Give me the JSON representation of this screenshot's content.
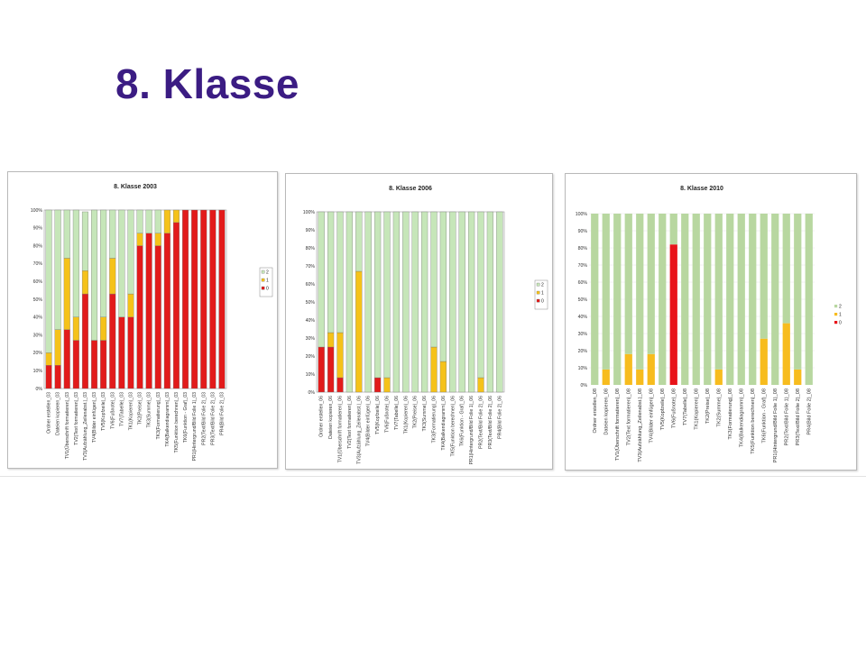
{
  "slide": {
    "title": "8. Klasse"
  },
  "colors": {
    "c2": "#c6e6b9",
    "c1": "#f5c21a",
    "c0": "#e21b1b",
    "c2_2010": "#b8d7a0",
    "c1_2010": "#f7bc1e",
    "c0_2010": "#e8141a"
  },
  "chart_data": [
    {
      "type": "bar",
      "stacked": true,
      "title": "8. Klasse 2003",
      "ylim": [
        0,
        100
      ],
      "yticks": [
        "0%",
        "10%",
        "20%",
        "30%",
        "40%",
        "50%",
        "60%",
        "70%",
        "80%",
        "90%",
        "100%"
      ],
      "legend_position": "right",
      "legend": [
        "2",
        "1",
        "0"
      ],
      "categories": [
        "Ordner erstellen_03",
        "Dateien kopieren_03",
        "TV1(Überschrift formatieren)_03",
        "TV2(Text formatieren)_03",
        "TV3(Aufzählung_Zeilenabst.)_03",
        "TV4(Bilder einfügen)_03",
        "TV5(Kopfzeile)_03",
        "TV6(Fußnote)_03",
        "TV7(Tabelle)_03",
        "TK1(Kopieren)_03",
        "TK2(Preise)_03",
        "TK3(Summe)_03",
        "TK3(Formatierung)_03",
        "TK4(Balkendiagramm)_03",
        "TK5(Funktion berechnen)_03",
        "TK6(Funktion - Graf)_03",
        "PR1(Hintergrund/Bild Folie 1)_03",
        "PR2(Text/Bild Folie 2)_03",
        "PR3(Text/Bild Folie 2)_03",
        "PR4(Bild Folie 2)_03"
      ],
      "series": [
        {
          "name": "0",
          "values": [
            13,
            13,
            33,
            27,
            53,
            27,
            27,
            53,
            40,
            40,
            80,
            87,
            80,
            87,
            93,
            100,
            100,
            100,
            100,
            100
          ]
        },
        {
          "name": "1",
          "values": [
            7,
            20,
            40,
            13,
            13,
            0,
            13,
            20,
            0,
            13,
            7,
            0,
            7,
            13,
            7,
            0,
            0,
            0,
            0,
            0
          ]
        },
        {
          "name": "2",
          "values": [
            80,
            67,
            27,
            60,
            33,
            73,
            60,
            27,
            60,
            47,
            13,
            13,
            13,
            0,
            0,
            0,
            0,
            0,
            0,
            0
          ]
        }
      ]
    },
    {
      "type": "bar",
      "stacked": true,
      "title": "8. Klasse 2006",
      "ylim": [
        0,
        100
      ],
      "yticks": [
        "0%",
        "10%",
        "20%",
        "30%",
        "40%",
        "50%",
        "60%",
        "70%",
        "80%",
        "90%",
        "100%"
      ],
      "legend_position": "right",
      "legend": [
        "2",
        "1",
        "0"
      ],
      "categories": [
        "Ordner erstellen_06",
        "Dateien kopieren_06",
        "TV1(Überschrift formatieren)_06",
        "TV2(Text formatieren)_06",
        "TV3(Aufzählung_Zeilenabst.)_06",
        "TV4(Bilder einfügen)_06",
        "TV5(Kopfzeile)_06",
        "TV6(Fußnote)_06",
        "TV7(Tabelle)_06",
        "TK1(Kopieren)_06",
        "TK2(Preise)_06",
        "TK3(Summe)_06",
        "TK3(Formatierung)_06",
        "TK4(Balkendiagramm)_06",
        "TK5(Funktion berechnen)_06",
        "TK6(Funktion - Graf)_06",
        "PR1(Hintergrund/Bild Folie 1)_06",
        "PR2(Text/Bild Folie 2)_06",
        "PR3(Text/Bild Folie 2)_06",
        "PR4(Bild Folie 2)_06"
      ],
      "series": [
        {
          "name": "0",
          "values": [
            25,
            25,
            8,
            0,
            0,
            0,
            8,
            0,
            0,
            0,
            0,
            0,
            0,
            0,
            0,
            0,
            0,
            0,
            0,
            0
          ]
        },
        {
          "name": "1",
          "values": [
            0,
            8,
            25,
            0,
            67,
            0,
            0,
            8,
            0,
            0,
            0,
            0,
            25,
            17,
            0,
            0,
            0,
            8,
            0,
            0
          ]
        },
        {
          "name": "2",
          "values": [
            75,
            67,
            67,
            100,
            33,
            100,
            92,
            92,
            100,
            100,
            100,
            100,
            75,
            83,
            100,
            100,
            100,
            92,
            100,
            100
          ]
        }
      ]
    },
    {
      "type": "bar",
      "stacked": true,
      "title": "8. Klasse 2010",
      "ylim": [
        0,
        100
      ],
      "yticks": [
        "0%",
        "10%",
        "20%",
        "30%",
        "40%",
        "50%",
        "60%",
        "70%",
        "80%",
        "90%",
        "100%"
      ],
      "legend_position": "right",
      "legend": [
        "2",
        "1",
        "0"
      ],
      "categories": [
        "Ordner erstellen_08",
        "Dateien kopieren_08",
        "TV1(Überschrift formatieren)_08",
        "TV2(Text formatieren)_08",
        "TV3(Aufzählung_Zeilenabst.)_08",
        "TV4(Bilder einfügen)_08",
        "TV5(Kopfzeile)_08",
        "TV6(Fußnote)_08",
        "TV7(Tabelle)_08",
        "TK1(Kopieren)_08",
        "TK2(Preise)_08",
        "TK2(Summe)_08",
        "TK3(Formatierung)_08",
        "TK4(Balkendiagramm)_08",
        "TK5(Funktion berechnen)_08",
        "TK6(Funktion - Graf)_08",
        "PR1(Hintergrund/Bild Folie 1)_08",
        "PR2(Text/Bild Folie 1)_08",
        "PR3(Text/Bild Folie 2)_08",
        "PR4(Bild Folie 2)_08"
      ],
      "series": [
        {
          "name": "0",
          "values": [
            0,
            0,
            0,
            0,
            0,
            0,
            0,
            82,
            0,
            0,
            0,
            0,
            0,
            0,
            0,
            0,
            0,
            0,
            0,
            0
          ]
        },
        {
          "name": "1",
          "values": [
            0,
            9,
            0,
            18,
            9,
            18,
            0,
            0,
            0,
            0,
            0,
            9,
            0,
            0,
            0,
            27,
            0,
            36,
            9,
            0
          ]
        },
        {
          "name": "2",
          "values": [
            100,
            91,
            100,
            82,
            91,
            82,
            100,
            18,
            100,
            100,
            100,
            91,
            100,
            100,
            100,
            73,
            100,
            64,
            91,
            100
          ]
        }
      ]
    }
  ]
}
